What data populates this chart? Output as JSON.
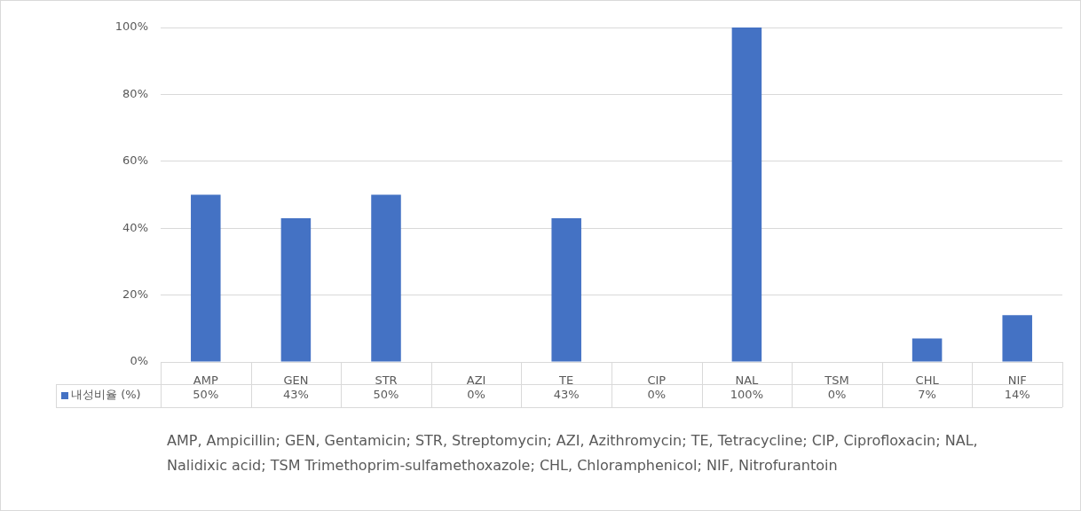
{
  "chart_data": {
    "type": "bar",
    "categories": [
      "AMP",
      "GEN",
      "STR",
      "AZI",
      "TE",
      "CIP",
      "NAL",
      "TSM",
      "CHL",
      "NIF"
    ],
    "series": [
      {
        "name": "내성비율 (%)",
        "color": "#4472c4",
        "values": [
          50,
          43,
          50,
          0,
          43,
          0,
          100,
          0,
          7,
          14
        ],
        "value_labels": [
          "50%",
          "43%",
          "50%",
          "0%",
          "43%",
          "0%",
          "100%",
          "0%",
          "7%",
          "14%"
        ]
      }
    ],
    "ylim": [
      0,
      100
    ],
    "yticks": [
      {
        "value": 0,
        "label": "0%"
      },
      {
        "value": 20,
        "label": "20%"
      },
      {
        "value": 40,
        "label": "40%"
      },
      {
        "value": 60,
        "label": "60%"
      },
      {
        "value": 80,
        "label": "80%"
      },
      {
        "value": 100,
        "label": "100%"
      }
    ],
    "grid": "y",
    "legend": "bottom",
    "annotations": [
      "AMP, Ampicillin; GEN, Gentamicin; STR, Streptomycin; AZI, Azithromycin; TE, Tetracycline; CIP, Ciprofloxacin; NAL, Nalidixic acid; TSM Trimethoprim-sulfamethoxazole; CHL, Chloramphenicol; NIF, Nitrofurantoin"
    ]
  }
}
